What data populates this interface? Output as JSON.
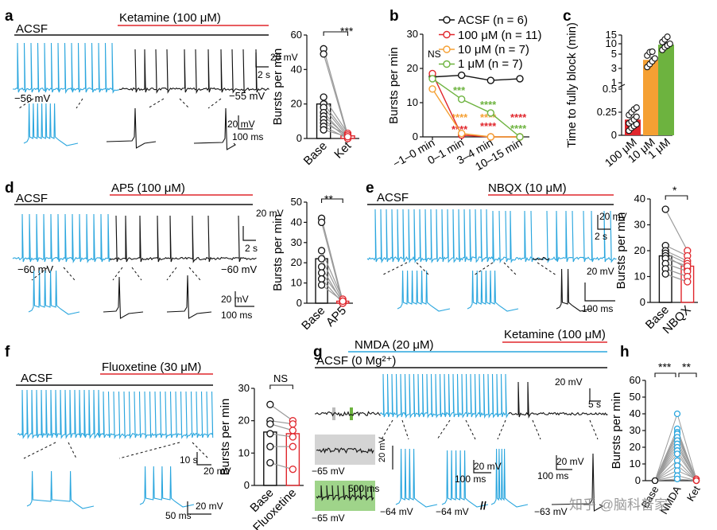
{
  "colors": {
    "blue": "#2aa6de",
    "black": "#111111",
    "red": "#e0262c",
    "orange": "#f5a033",
    "green": "#6db33f",
    "grey": "#9a9a9a"
  },
  "watermark": "知乎 @脑科普家",
  "panels": {
    "a": {
      "letter": "a",
      "acsf": "ACSF",
      "drug": "Ketamine (100 μM)",
      "v_left": "−56 mV",
      "v_right": "−55 mV",
      "scale_v": "20 mV",
      "scale_t": "2 s",
      "zoom_v": "20 mV",
      "zoom_t": "100 ms",
      "chart_title_y": "Bursts per min",
      "sig": "***"
    },
    "b": {
      "letter": "b",
      "ns": "NS",
      "legend": [
        "ACSF (n = 6)",
        "100 μM (n = 11)",
        "10 μM (n = 7)",
        "1 μM (n = 7)"
      ],
      "stars": {
        "s1": "***",
        "s2": "****",
        "s3": "****",
        "s4": "****",
        "s5": "****",
        "s6": "****",
        "s7": "****",
        "s8": "****"
      }
    },
    "c": {
      "letter": "c"
    },
    "d": {
      "letter": "d",
      "acsf": "ACSF",
      "drug": "AP5 (100 μM)",
      "v_left": "−60 mV",
      "v_right": "−60 mV",
      "scale_v": "20 mV",
      "scale_t": "2 s",
      "zoom_v": "20 mV",
      "zoom_t": "100 ms",
      "sig": "**"
    },
    "e": {
      "letter": "e",
      "acsf": "ACSF",
      "drug": "NBQX (10 μM)",
      "scale_v": "20 mV",
      "scale_t": "2 s",
      "zoom_v": "20 mV",
      "zoom_t": "100 ms",
      "sig": "*"
    },
    "f": {
      "letter": "f",
      "acsf": "ACSF",
      "drug": "Fluoxetine (30 μM)",
      "scale_v": "20 mV",
      "scale_t": "10 s",
      "zoom_v": "20 mV",
      "zoom_t": "50 ms",
      "sig": "NS"
    },
    "g": {
      "letter": "g",
      "nmda": "NMDA (20 μM)",
      "drug": "Ketamine (100 μM)",
      "acsf": "ACSF (0 Mg²⁺)",
      "scale_v": "20 mV",
      "scale_t": "5 s",
      "inset_t": "500 ms",
      "v1": "−65 mV",
      "v2": "−65 mV",
      "v3": "−64 mV",
      "v4": "−64 mV",
      "v5": "−63 mV",
      "zoom_v1": "20 mV",
      "zoom_v2": "20 mV",
      "zoom_t1": "100 ms",
      "zoom_v3": "20 mV",
      "zoom_t2": "100 ms",
      "break": "//"
    },
    "h": {
      "letter": "h",
      "sig1": "***",
      "sig2": "**"
    }
  },
  "chart_data": [
    {
      "id": "a",
      "type": "bar",
      "categories": [
        "Base",
        "Ket"
      ],
      "values": [
        20,
        1.5
      ],
      "ylabel": "Bursts per min",
      "ylim": [
        0,
        60
      ],
      "yticks": [
        0,
        20,
        40,
        60
      ],
      "paired_points": [
        [
          52,
          2
        ],
        [
          49,
          1
        ],
        [
          24,
          3
        ],
        [
          20,
          2
        ],
        [
          18,
          1
        ],
        [
          15,
          0
        ],
        [
          13,
          1
        ],
        [
          11,
          0
        ],
        [
          9,
          2
        ],
        [
          7,
          0
        ],
        [
          5,
          1
        ]
      ],
      "significance": "***"
    },
    {
      "id": "b",
      "type": "line",
      "categories": [
        "−1–0 min",
        "0–1 min",
        "3–4 min",
        "10–15 min"
      ],
      "ylabel": "Bursts per min",
      "ylim": [
        0,
        30
      ],
      "yticks": [
        0,
        10,
        20,
        30
      ],
      "series": [
        {
          "name": "ACSF (n = 6)",
          "values": [
            17.5,
            18,
            16.5,
            17
          ]
        },
        {
          "name": "100 μM (n = 11)",
          "values": [
            18.5,
            0.5,
            0,
            0
          ]
        },
        {
          "name": "10 μM (n = 7)",
          "values": [
            14,
            1,
            0,
            0
          ]
        },
        {
          "name": "1 μM (n = 7)",
          "values": [
            17,
            11,
            7,
            0
          ]
        }
      ],
      "annotations": [
        "NS",
        "***",
        "****"
      ]
    },
    {
      "id": "c",
      "type": "bar",
      "categories": [
        "100 μM",
        "10 μM",
        "1 μM"
      ],
      "values": [
        0.17,
        4.2,
        9.5
      ],
      "ylabel": "Time to fully block (min)",
      "yticks": [
        "0",
        "0.25",
        "0.5",
        "1",
        "3",
        "5",
        "10",
        "15"
      ],
      "points": {
        "100 μM": [
          0.05,
          0.08,
          0.1,
          0.12,
          0.13,
          0.15,
          0.17,
          0.2,
          0.22,
          0.25,
          0.28,
          0.3
        ],
        "10 μM": [
          3.2,
          3.6,
          4.0,
          4.4,
          4.8,
          5.2,
          5.5
        ],
        "1 μM": [
          6.5,
          8.0,
          9.0,
          10.0,
          11.0,
          12.5,
          14.0
        ]
      }
    },
    {
      "id": "d",
      "type": "bar",
      "categories": [
        "Base",
        "AP5"
      ],
      "values": [
        22,
        1
      ],
      "ylabel": "Bursts per min",
      "ylim": [
        0,
        50
      ],
      "yticks": [
        0,
        10,
        20,
        30,
        40,
        50
      ],
      "paired_points": [
        [
          42,
          1
        ],
        [
          40,
          0
        ],
        [
          26,
          2
        ],
        [
          22,
          1
        ],
        [
          18,
          0
        ],
        [
          15,
          1
        ],
        [
          12,
          0
        ],
        [
          9,
          1
        ]
      ],
      "significance": "**"
    },
    {
      "id": "e",
      "type": "bar",
      "categories": [
        "Base",
        "NBQX"
      ],
      "values": [
        18,
        14
      ],
      "ylabel": "Bursts per min",
      "ylim": [
        0,
        40
      ],
      "yticks": [
        0,
        10,
        20,
        30,
        40
      ],
      "paired_points": [
        [
          36,
          20
        ],
        [
          22,
          18
        ],
        [
          20,
          16
        ],
        [
          19,
          15
        ],
        [
          18,
          13
        ],
        [
          17,
          14
        ],
        [
          15,
          12
        ],
        [
          13,
          10
        ],
        [
          11,
          8
        ]
      ],
      "significance": "*"
    },
    {
      "id": "f",
      "type": "bar",
      "categories": [
        "Base",
        "Fluoxetine"
      ],
      "values": [
        16.5,
        16
      ],
      "ylabel": "Bursts per min",
      "ylim": [
        0,
        30
      ],
      "yticks": [
        0,
        10,
        20,
        30
      ],
      "paired_points": [
        [
          25,
          20
        ],
        [
          20,
          19
        ],
        [
          19,
          17
        ],
        [
          16,
          15
        ],
        [
          12,
          12
        ],
        [
          7,
          5
        ]
      ],
      "significance": "NS"
    },
    {
      "id": "h",
      "type": "line",
      "categories": [
        "Base",
        "NMDA",
        "Ket"
      ],
      "ylabel": "Bursts per min",
      "yticks": [
        0,
        10,
        20,
        30,
        40,
        50,
        60
      ],
      "paired_points": [
        [
          0,
          40,
          1
        ],
        [
          0,
          31,
          0
        ],
        [
          0,
          29,
          1
        ],
        [
          0,
          28,
          0
        ],
        [
          0,
          26,
          1
        ],
        [
          0,
          24,
          0
        ],
        [
          0,
          22,
          0
        ],
        [
          0,
          20,
          1
        ],
        [
          0,
          18,
          0
        ],
        [
          0,
          16,
          0
        ],
        [
          0,
          12,
          0
        ],
        [
          0,
          9,
          0
        ],
        [
          0,
          6,
          1
        ],
        [
          0,
          3,
          0
        ],
        [
          0,
          1,
          0
        ]
      ],
      "significance": [
        "***",
        "**"
      ]
    }
  ]
}
